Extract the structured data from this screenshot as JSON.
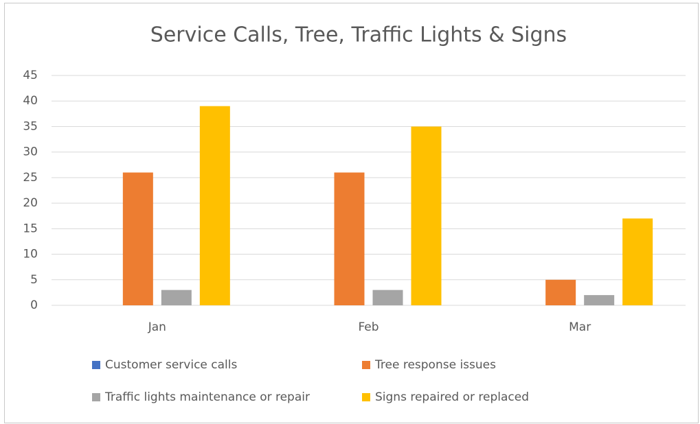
{
  "chart_data": {
    "type": "bar",
    "title": "Service Calls, Tree, Traffic Lights & Signs",
    "categories": [
      "Jan",
      "Feb",
      "Mar"
    ],
    "series": [
      {
        "name": "Customer service calls",
        "color": "#4472c4",
        "values": [
          0,
          0,
          0
        ]
      },
      {
        "name": "Tree response issues",
        "color": "#ed7d31",
        "values": [
          26,
          26,
          5
        ]
      },
      {
        "name": "Traffic lights maintenance or repair",
        "color": "#a5a5a5",
        "values": [
          3,
          3,
          2
        ]
      },
      {
        "name": "Signs repaired or replaced",
        "color": "#ffc000",
        "values": [
          39,
          35,
          17
        ]
      }
    ],
    "ylim": [
      0,
      45
    ],
    "yticks": [
      0,
      5,
      10,
      15,
      20,
      25,
      30,
      35,
      40,
      45
    ],
    "grid": true,
    "legend": "bottom"
  }
}
